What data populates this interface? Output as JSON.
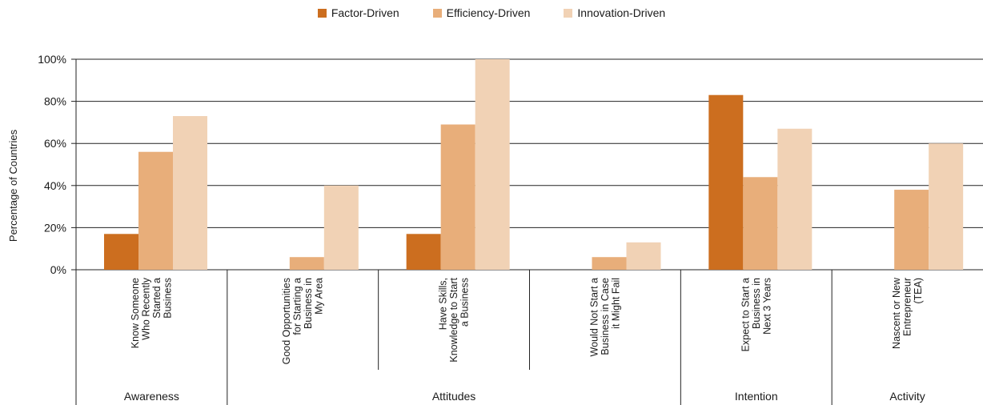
{
  "colors": {
    "factor": "#cc6e1f",
    "efficiency": "#e8ae7a",
    "innovation": "#f1d2b5",
    "axis": "#222222"
  },
  "chart_data": {
    "type": "bar",
    "title": "",
    "ylabel": "Percentage of Countries",
    "ylim": [
      0,
      100
    ],
    "yticks": [
      "0%",
      "20%",
      "40%",
      "60%",
      "80%",
      "100%"
    ],
    "grid": true,
    "legend_position": "top-center",
    "categories": [
      [
        "Know Someone",
        "Who Recently",
        "Started a",
        "Business"
      ],
      [
        "Good Opportunities",
        "for Starting a",
        "Business in",
        "My Area"
      ],
      [
        "Have Skills,",
        "Knowledge to Start",
        "a Business"
      ],
      [
        "Would Not Start a",
        "Business in Case",
        "it Might Fail"
      ],
      [
        "Expect to Start a",
        "Business in",
        "Next 3 Years"
      ],
      [
        "Nascent or New",
        "Entrepreneur",
        "(TEA)"
      ]
    ],
    "groups": [
      {
        "label": "Awareness",
        "span": 1
      },
      {
        "label": "Attitudes",
        "span": 3
      },
      {
        "label": "Intention",
        "span": 1
      },
      {
        "label": "Activity",
        "span": 1
      }
    ],
    "series": [
      {
        "name": "Factor-Driven",
        "values": [
          17,
          0,
          17,
          0,
          83,
          0
        ]
      },
      {
        "name": "Efficiency-Driven",
        "values": [
          56,
          6,
          69,
          6,
          44,
          38
        ]
      },
      {
        "name": "Innovation-Driven",
        "values": [
          73,
          40,
          100,
          13,
          67,
          60
        ]
      }
    ]
  }
}
